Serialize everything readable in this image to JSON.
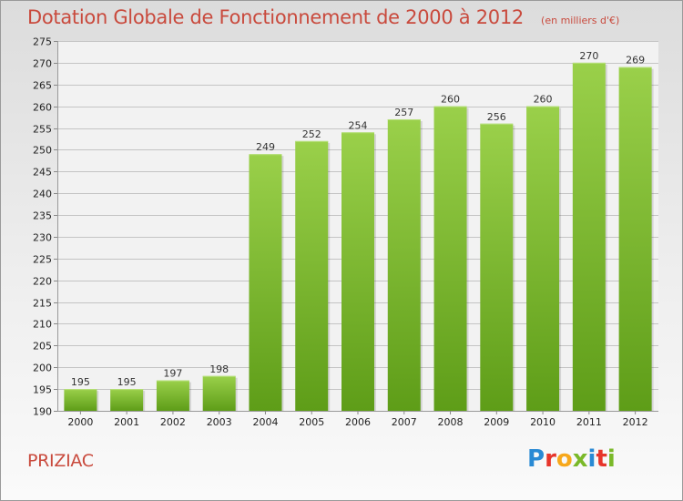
{
  "header": {
    "title": "Dotation Globale de Fonctionnement de 2000 à 2012",
    "subtitle": "(en milliers d'€)"
  },
  "footer": {
    "place": "PRIZIAC",
    "logo": {
      "letters": [
        "P",
        "r",
        "o",
        "x",
        "i",
        "t",
        "i"
      ],
      "colors": [
        "#2a8ad4",
        "#e7352b",
        "#f7a81b",
        "#7ab929",
        "#2a8ad4",
        "#e7352b",
        "#7ab929"
      ]
    }
  },
  "colors": {
    "accent": "#c94a3d",
    "bar_light": "#9ad04a",
    "bar_dark": "#5e9d18"
  },
  "chart_data": {
    "type": "bar",
    "title": "Dotation Globale de Fonctionnement de 2000 à 2012",
    "subtitle": "(en milliers d'€)",
    "categories": [
      "2000",
      "2001",
      "2002",
      "2003",
      "2004",
      "2005",
      "2006",
      "2007",
      "2008",
      "2009",
      "2010",
      "2011",
      "2012"
    ],
    "values": [
      195,
      195,
      197,
      198,
      249,
      252,
      254,
      257,
      260,
      256,
      260,
      270,
      269
    ],
    "ylim": [
      190,
      275
    ],
    "yticks": [
      190,
      195,
      200,
      205,
      210,
      215,
      220,
      225,
      230,
      235,
      240,
      245,
      250,
      255,
      260,
      265,
      270,
      275
    ],
    "grid": true,
    "xlabel": "",
    "ylabel": ""
  }
}
